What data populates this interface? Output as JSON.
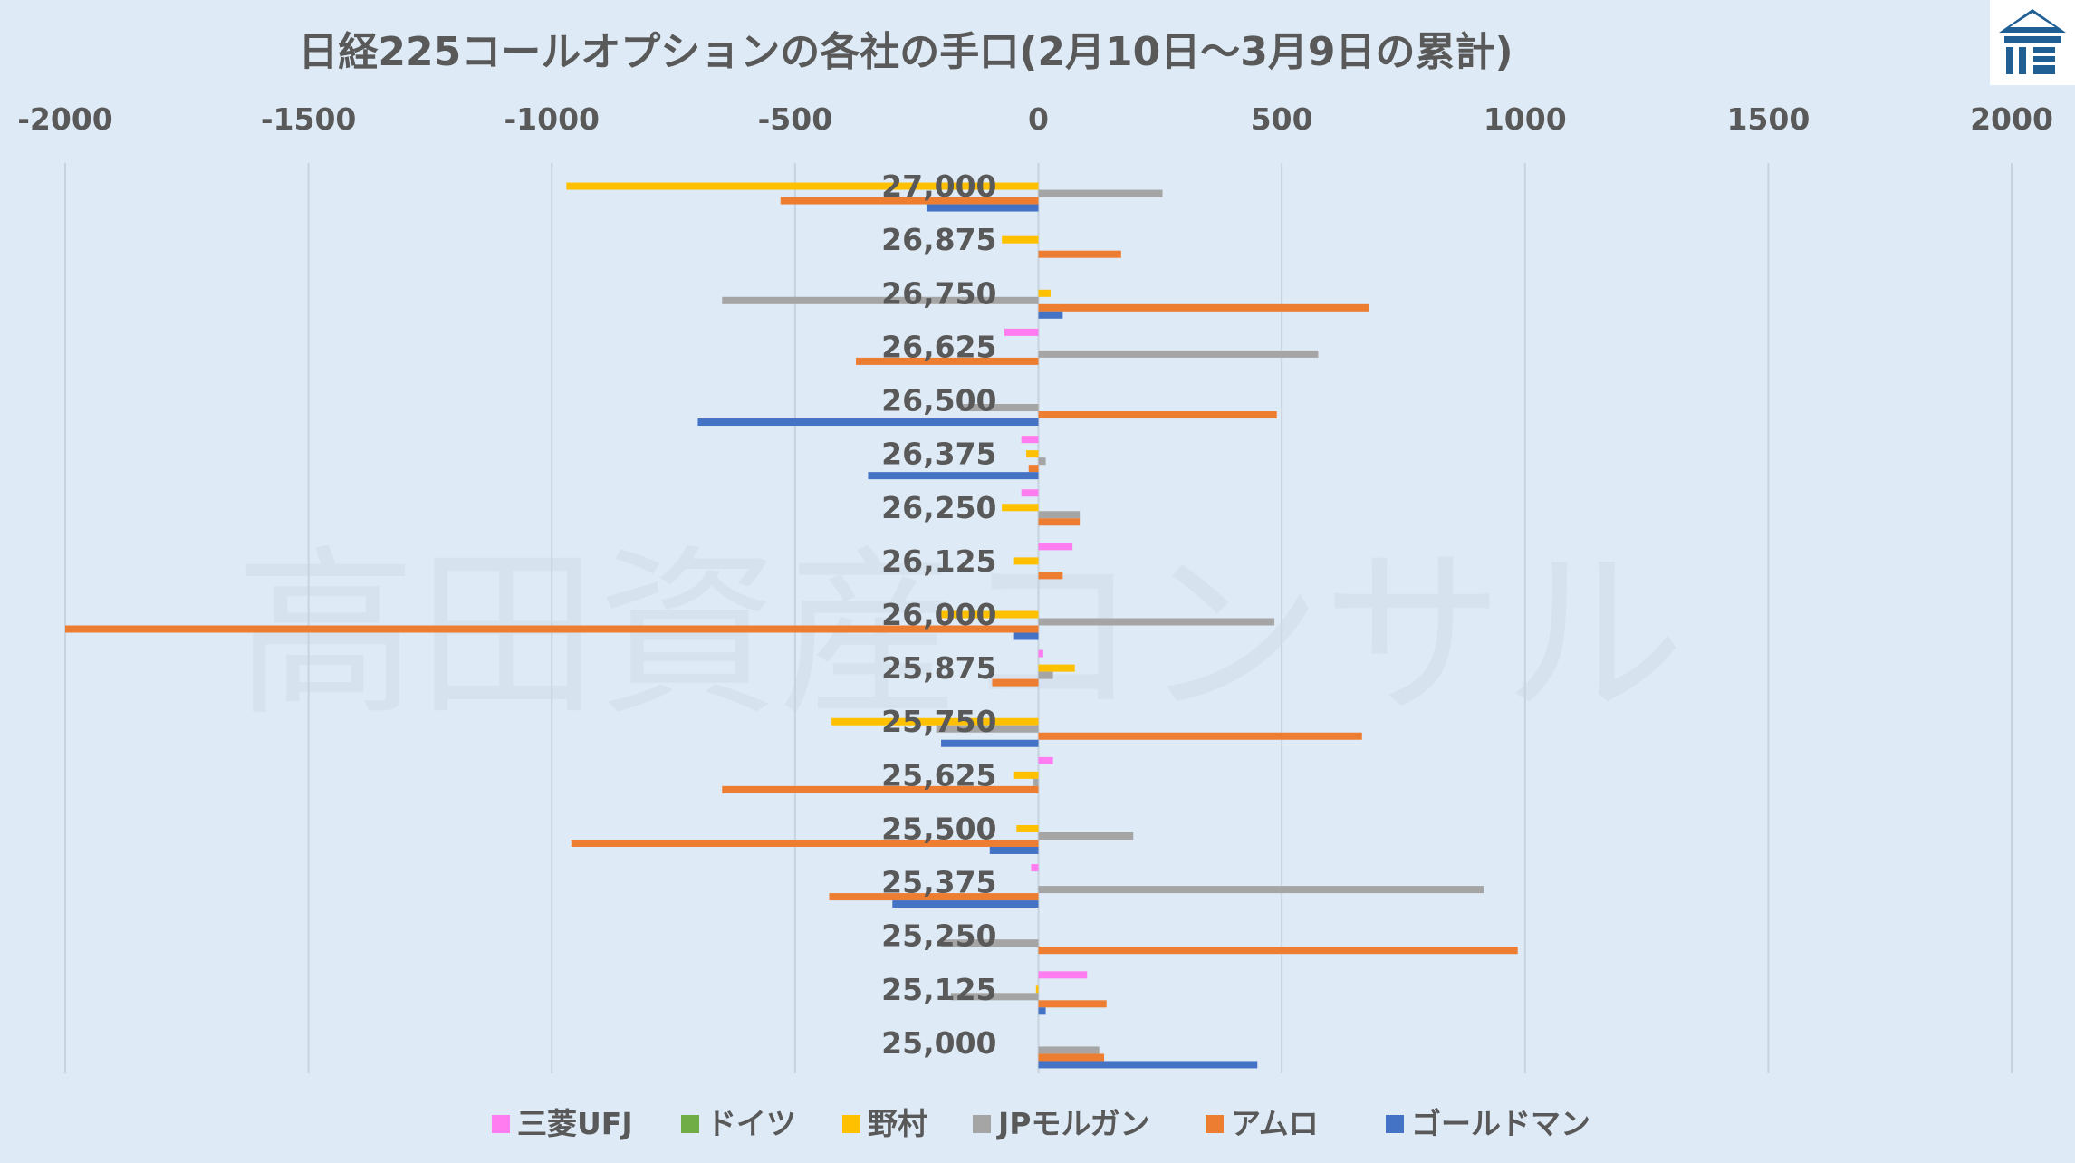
{
  "chart_data": {
    "type": "bar",
    "orientation": "horizontal",
    "title": "日経225コールオプションの各社の手口(2月10日～3月9日の累計)",
    "xlabel": "",
    "ylabel": "",
    "xlim": [
      -2000,
      2000
    ],
    "x_ticks": [
      -2000,
      -1500,
      -1000,
      -500,
      0,
      500,
      1000,
      1500,
      2000
    ],
    "x_axis_position": "top",
    "grid": "vertical",
    "legend_position": "bottom",
    "categories": [
      "27,000",
      "26,875",
      "26,750",
      "26,625",
      "26,500",
      "26,375",
      "26,250",
      "26,125",
      "26,000",
      "25,875",
      "25,750",
      "25,625",
      "25,500",
      "25,375",
      "25,250",
      "25,125",
      "25,000"
    ],
    "series": [
      {
        "name": "三菱UFJ",
        "color": "#ff7cf0",
        "values": [
          0,
          0,
          0,
          -70,
          0,
          -35,
          -35,
          70,
          0,
          10,
          0,
          30,
          0,
          -15,
          0,
          100,
          0
        ]
      },
      {
        "name": "ドイツ",
        "color": "#70ad47",
        "values": [
          0,
          0,
          0,
          0,
          0,
          0,
          0,
          0,
          0,
          0,
          0,
          0,
          0,
          0,
          0,
          0,
          0
        ]
      },
      {
        "name": "野村",
        "color": "#ffc000",
        "values": [
          -970,
          -75,
          25,
          0,
          0,
          -25,
          -75,
          -50,
          -210,
          75,
          -425,
          -50,
          -45,
          0,
          0,
          -5,
          0
        ]
      },
      {
        "name": "JPモルガン",
        "color": "#a5a5a5",
        "values": [
          255,
          0,
          -650,
          575,
          -160,
          15,
          85,
          0,
          485,
          30,
          -210,
          -10,
          195,
          915,
          -200,
          -180,
          125
        ]
      },
      {
        "name": "アムロ",
        "color": "#ed7d31",
        "values": [
          -530,
          170,
          680,
          -375,
          490,
          -20,
          85,
          50,
          -2000,
          -95,
          665,
          -650,
          -960,
          -430,
          985,
          140,
          135
        ]
      },
      {
        "name": "ゴールドマン",
        "color": "#4472c4",
        "values": [
          -230,
          0,
          50,
          0,
          -700,
          -350,
          0,
          0,
          -50,
          0,
          -200,
          0,
          -100,
          -300,
          0,
          15,
          450
        ]
      }
    ],
    "watermark": "高田資産コンサル"
  }
}
